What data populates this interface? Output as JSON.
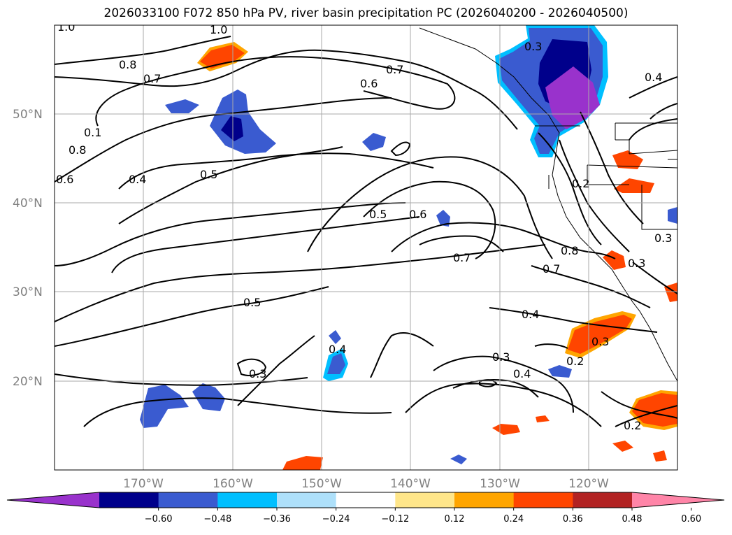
{
  "title": "2026033100 F072 850 hPa PV, river basin precipitation PC (2026040200 - 2026040500)",
  "lat_labels": [
    "50°N",
    "40°N",
    "30°N",
    "20°N"
  ],
  "lon_labels": [
    "170°W",
    "160°W",
    "150°W",
    "140°W",
    "130°W",
    "120°W"
  ],
  "colorbar": {
    "ticks": [
      "−0.60",
      "−0.48",
      "−0.36",
      "−0.24",
      "−0.12",
      "0.12",
      "0.24",
      "0.36",
      "0.48",
      "0.60"
    ],
    "colors": [
      "#9932cc",
      "#00008b",
      "#3a5bd0",
      "#00bfff",
      "#aee0fa",
      "#ffffff",
      "#ffe68a",
      "#ffa500",
      "#ff4500",
      "#b22222",
      "#ff85a8"
    ]
  },
  "contour_labels": [
    "1.0",
    "1.0",
    "0.8",
    "0.7",
    "0.7",
    "0.6",
    "0.3",
    "0.4",
    "0.1",
    "0.8",
    "0.6",
    "0.4",
    "0.5",
    "0.5",
    "0.6",
    "0.7",
    "0.8",
    "0.7",
    "0.5",
    "0.4",
    "0.3",
    "0.3",
    "0.4",
    "0.3",
    "0.2",
    "0.3",
    "0.2",
    "0.3",
    "0.2",
    "0.4"
  ]
}
